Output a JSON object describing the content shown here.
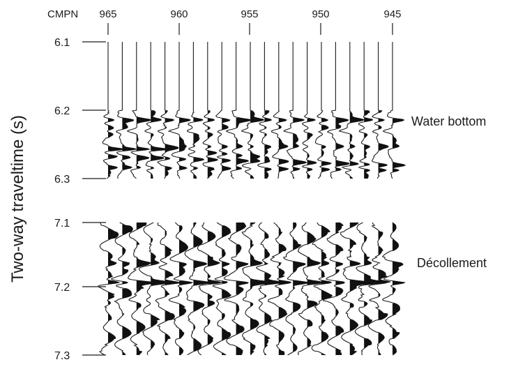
{
  "figure": {
    "cmp_header": "CMPN",
    "cmp_labels": [
      "965",
      "960",
      "955",
      "950",
      "945"
    ],
    "ylabel": "Two-way traveltime (s)",
    "panels": [
      {
        "name": "upper",
        "time_labels": [
          "6.1",
          "6.2",
          "6.3"
        ],
        "event_label": "Water bottom",
        "event_time": 6.22
      },
      {
        "name": "lower",
        "time_labels": [
          "7.1",
          "7.2",
          "7.3"
        ],
        "event_label": "Décollement",
        "event_time": 7.19
      }
    ],
    "trace_count": 21,
    "colors": {
      "ink": "#1a1a1a",
      "background": "#ffffff"
    }
  }
}
